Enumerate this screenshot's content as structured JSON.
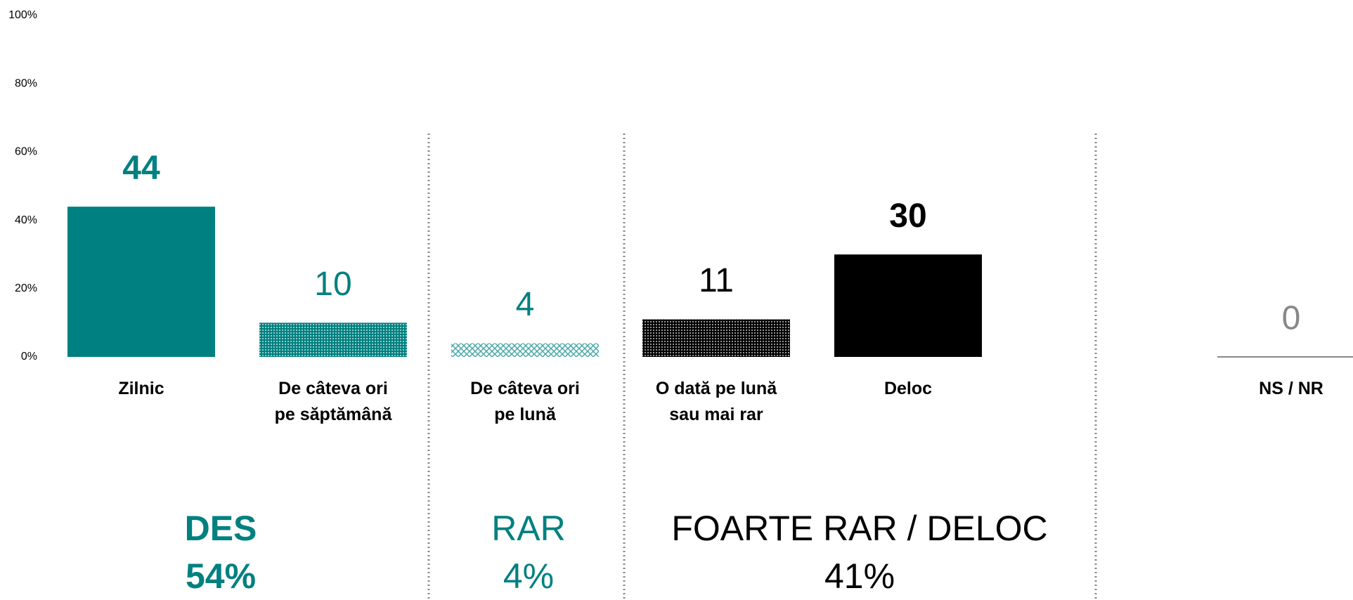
{
  "chart_data": {
    "type": "bar",
    "categories": [
      "Zilnic",
      "De câteva ori\npe săptămână",
      "De câteva ori\npe lună",
      "O dată pe lună\nsau mai rar",
      "Deloc",
      "NS / NR"
    ],
    "values": [
      44,
      10,
      4,
      11,
      30,
      0
    ],
    "colors": [
      "#008080",
      "#008080",
      "#4aa8a8",
      "#000000",
      "#000000",
      "#888888"
    ],
    "fills": [
      "solid",
      "dots",
      "crosshatch",
      "dots",
      "solid",
      "solid"
    ],
    "label_colors": [
      "#008080",
      "#008080",
      "#008080",
      "#000000",
      "#000000",
      "#888888"
    ],
    "label_bold": [
      true,
      false,
      false,
      false,
      true,
      false
    ],
    "ylim": [
      0,
      100
    ],
    "yticks": [
      {
        "value": 0,
        "label": "0%"
      },
      {
        "value": 20,
        "label": "20%"
      },
      {
        "value": 40,
        "label": "40%"
      },
      {
        "value": 60,
        "label": "60%"
      },
      {
        "value": 80,
        "label": "80%"
      },
      {
        "value": 100,
        "label": "100%"
      }
    ],
    "grid": false,
    "groups": [
      {
        "name": "DES",
        "share": "54%",
        "color": "#008080",
        "bold": true
      },
      {
        "name": "RAR",
        "share": "4%",
        "color": "#008080",
        "bold": false
      },
      {
        "name": "FOARTE RAR / DELOC",
        "share": "41%",
        "color": "#000000",
        "bold": false
      }
    ]
  }
}
